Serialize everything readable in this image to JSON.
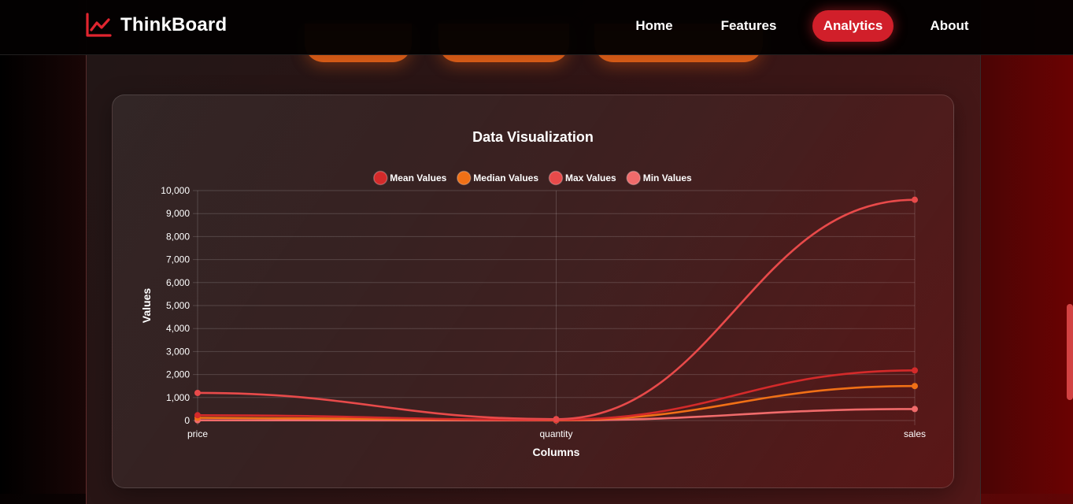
{
  "brand": {
    "name": "ThinkBoard",
    "icon": "chart-line-icon"
  },
  "nav": {
    "items": [
      {
        "label": "Home",
        "active": false
      },
      {
        "label": "Features",
        "active": false
      },
      {
        "label": "Analytics",
        "active": true
      },
      {
        "label": "About",
        "active": false
      }
    ]
  },
  "colors": {
    "accent": "#d11f2a",
    "mean": "#d42a2a",
    "median": "#f07016",
    "max": "#e84a4a",
    "min": "#f06b6b"
  },
  "chart_data": {
    "type": "line",
    "title": "Data Visualization",
    "xlabel": "Columns",
    "ylabel": "Values",
    "categories": [
      "price",
      "quantity",
      "sales"
    ],
    "ylim": [
      0,
      10000
    ],
    "yticks": [
      0,
      1000,
      2000,
      3000,
      4000,
      5000,
      6000,
      7000,
      8000,
      9000,
      10000
    ],
    "grid": true,
    "legend_position": "top",
    "series": [
      {
        "name": "Mean Values",
        "color": "#d42a2a",
        "values": [
          230,
          30,
          2180
        ]
      },
      {
        "name": "Median Values",
        "color": "#f07016",
        "values": [
          120,
          20,
          1500
        ]
      },
      {
        "name": "Max Values",
        "color": "#e84a4a",
        "values": [
          1200,
          60,
          9600
        ]
      },
      {
        "name": "Min Values",
        "color": "#f06b6b",
        "values": [
          10,
          5,
          500
        ]
      }
    ]
  }
}
